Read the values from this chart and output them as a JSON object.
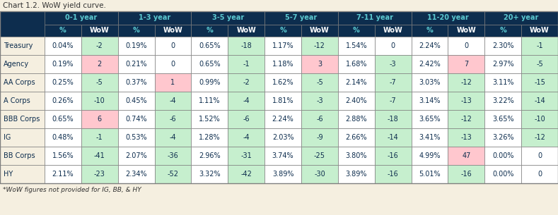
{
  "title": "Chart 1.2. WoW yield curve.",
  "footnote": "*WoW figures not provided for IG, BB, & HY",
  "header_bg": "#0d2d4e",
  "header_text_color": "#ffffff",
  "row_label_bg": "#f5efe0",
  "row_label_text": "#0d2d4e",
  "col_groups": [
    "0-1 year",
    "1-3 year",
    "3-5 year",
    "5-7 year",
    "7-11 year",
    "11-20 year",
    "20+ year"
  ],
  "sub_headers": [
    "%",
    "WoW"
  ],
  "rows": [
    {
      "label": "Treasury",
      "data": [
        "0.04%",
        -2,
        "0.19%",
        0,
        "0.65%",
        -18,
        "1.17%",
        -12,
        "1.54%",
        0,
        "2.24%",
        0,
        "2.30%",
        -1
      ]
    },
    {
      "label": "Agency",
      "data": [
        "0.19%",
        2,
        "0.21%",
        0,
        "0.65%",
        -1,
        "1.18%",
        3,
        "1.68%",
        -3,
        "2.42%",
        7,
        "2.97%",
        -5
      ]
    },
    {
      "label": "AA Corps",
      "data": [
        "0.25%",
        -5,
        "0.37%",
        1,
        "0.99%",
        -2,
        "1.62%",
        -5,
        "2.14%",
        -7,
        "3.03%",
        -12,
        "3.11%",
        -15
      ]
    },
    {
      "label": "A Corps",
      "data": [
        "0.26%",
        -10,
        "0.45%",
        -4,
        "1.11%",
        -4,
        "1.81%",
        -3,
        "2.40%",
        -7,
        "3.14%",
        -13,
        "3.22%",
        -14
      ]
    },
    {
      "label": "BBB Corps",
      "data": [
        "0.65%",
        6,
        "0.74%",
        -6,
        "1.52%",
        -6,
        "2.24%",
        -6,
        "2.88%",
        -18,
        "3.65%",
        -12,
        "3.65%",
        -10
      ]
    },
    {
      "label": "IG",
      "data": [
        "0.48%",
        -1,
        "0.53%",
        -4,
        "1.28%",
        -4,
        "2.03%",
        -9,
        "2.66%",
        -14,
        "3.41%",
        -13,
        "3.26%",
        -12
      ]
    },
    {
      "label": "BB Corps",
      "data": [
        "1.56%",
        -41,
        "2.07%",
        -36,
        "2.96%",
        -31,
        "3.74%",
        -25,
        "3.80%",
        -16,
        "4.99%",
        47,
        "0.00%",
        0
      ]
    },
    {
      "label": "HY",
      "data": [
        "2.11%",
        -23,
        "2.34%",
        -52,
        "3.32%",
        -42,
        "3.89%",
        -30,
        "3.89%",
        -16,
        "5.01%",
        -16,
        "0.00%",
        0
      ]
    }
  ],
  "green_light": "#c6efce",
  "red_light": "#ffc7ce",
  "white_cell": "#ffffff",
  "border_color": "#7f7f7f",
  "title_color": "#333333",
  "footnote_color": "#333333",
  "header_group_text": "#5bc8d0",
  "header_pct_text": "#5bc8d0",
  "header_wow_text": "#ffffff",
  "bg_color": "#f5efe0"
}
